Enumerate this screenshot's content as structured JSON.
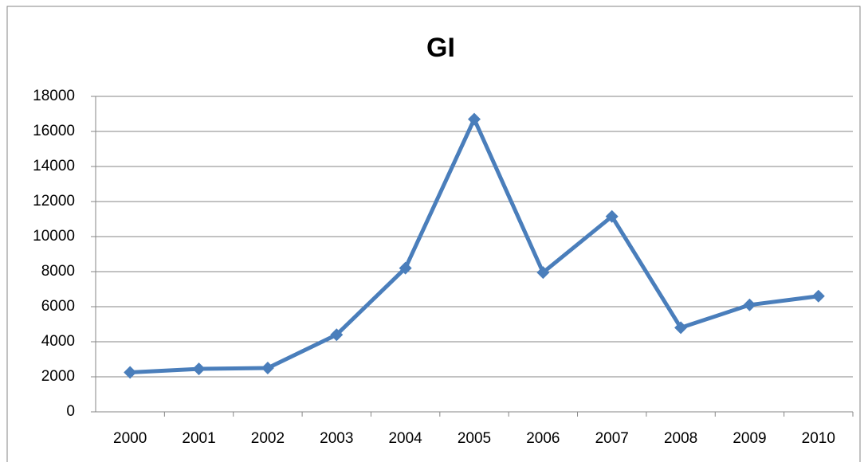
{
  "chart_data": {
    "type": "line",
    "title": "GI",
    "categories": [
      "2000",
      "2001",
      "2002",
      "2003",
      "2004",
      "2005",
      "2006",
      "2007",
      "2008",
      "2009",
      "2010"
    ],
    "values": [
      2250,
      2450,
      2500,
      4400,
      8200,
      16700,
      7950,
      11150,
      4800,
      6100,
      6600
    ],
    "color": "#4a7ebb",
    "ylim": [
      0,
      18000
    ],
    "yticks": [
      0,
      2000,
      4000,
      6000,
      8000,
      10000,
      12000,
      14000,
      16000,
      18000
    ],
    "grid": true
  }
}
